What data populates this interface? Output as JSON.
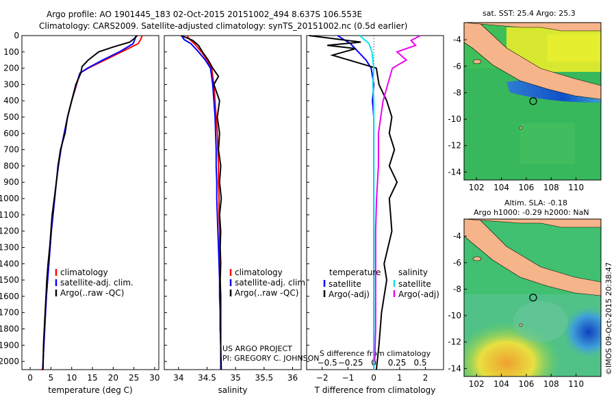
{
  "header": {
    "line1": "Argo profile: AO 1901445_183 02-Oct-2015 20151002_494 8.637S 106.553E",
    "line2": "Climatology: CARS2009. Satellite-adjusted climatology: synTS_20151002.nc (0.5d earlier)"
  },
  "colors": {
    "climatology": "#ff0000",
    "satellite": "#0000ff",
    "argo": "#000000",
    "satellite_s": "#00e5ee",
    "argo_s": "#ee00ee",
    "land": "#f6b48a"
  },
  "depth_axis": {
    "min": 0,
    "max": 2050,
    "ticks": [
      0,
      100,
      200,
      300,
      400,
      500,
      600,
      700,
      800,
      900,
      1000,
      1100,
      1200,
      1300,
      1400,
      1500,
      1600,
      1700,
      1800,
      1900,
      2000
    ],
    "tick_labels": [
      "0",
      "100",
      "200",
      "300",
      "400",
      "500",
      "600",
      "700",
      "800",
      "900",
      "1000",
      "1100",
      "1200",
      "1300",
      "1400",
      "1500",
      "1600",
      "1700",
      "1800",
      "1900",
      "2000"
    ]
  },
  "chart_data": [
    {
      "type": "line",
      "xlabel": "temperature (deg C)",
      "xlim": [
        -2,
        31
      ],
      "xticks": [
        0,
        5,
        10,
        15,
        20,
        25,
        30
      ],
      "xtick_labels": [
        "0",
        "5",
        "10",
        "15",
        "20",
        "25",
        "30"
      ],
      "legend": [
        "climatology",
        "satellite-adj. clim.",
        "Argo(..raw -QC)"
      ],
      "series": [
        {
          "name": "climatology",
          "color": "#ff0000",
          "x": [
            27.0,
            26.6,
            26.0,
            22.0,
            18.0,
            14.0,
            12.0,
            11.2,
            10.0,
            9.0,
            8.2,
            7.4,
            6.8,
            6.3,
            5.9,
            5.5,
            5.1,
            4.8,
            4.5,
            4.2,
            3.9,
            3.7,
            3.5,
            3.3,
            3.1,
            3.0,
            2.9,
            2.8,
            2.7,
            2.6
          ],
          "y": [
            0,
            25,
            50,
            100,
            150,
            200,
            230,
            300,
            400,
            500,
            600,
            700,
            800,
            900,
            1000,
            1100,
            1200,
            1300,
            1400,
            1500,
            1600,
            1700,
            1800,
            1900,
            2000,
            2050,
            2050,
            2050,
            2050,
            2050
          ]
        },
        {
          "name": "satellite-adj. clim.",
          "color": "#0000ff",
          "x": [
            25.5,
            25.2,
            24.8,
            21.5,
            17.5,
            13.8,
            12.0,
            11.1,
            10.0,
            9.0,
            8.2,
            7.4,
            6.8,
            6.3,
            5.9,
            5.5,
            5.1,
            4.8,
            4.5,
            4.2,
            3.9,
            3.7,
            3.5,
            3.3,
            3.1,
            3.0
          ],
          "y": [
            0,
            25,
            50,
            100,
            150,
            200,
            230,
            300,
            400,
            500,
            600,
            700,
            800,
            900,
            1000,
            1100,
            1200,
            1300,
            1400,
            1500,
            1600,
            1700,
            1800,
            1900,
            2000,
            2050
          ]
        },
        {
          "name": "Argo(..raw -QC)",
          "color": "#000000",
          "x": [
            25.8,
            25.0,
            24.0,
            20.0,
            16.5,
            14.0,
            12.5,
            12.2,
            11.0,
            10.0,
            9.0,
            8.4,
            7.3,
            6.7,
            6.3,
            5.8,
            5.3,
            5.0,
            4.7,
            4.3,
            4.0,
            3.8,
            3.6,
            3.4,
            3.2,
            3.1
          ],
          "y": [
            0,
            20,
            40,
            70,
            100,
            150,
            190,
            230,
            300,
            400,
            500,
            600,
            700,
            800,
            900,
            1000,
            1100,
            1200,
            1300,
            1400,
            1500,
            1600,
            1700,
            1800,
            1900,
            2050
          ]
        }
      ]
    },
    {
      "type": "line",
      "xlabel": "salinity",
      "xlim": [
        33.75,
        36.15
      ],
      "xticks": [
        34,
        34.5,
        35,
        35.5,
        36
      ],
      "xtick_labels": [
        "34",
        "34.5",
        "35",
        "35.5",
        "36"
      ],
      "legend": [
        "climatology",
        "satellite-adj. clim.",
        "Argo(..raw -QC)"
      ],
      "annotation": [
        "US ARGO PROJECT",
        "PI: GREGORY C. JOHNSON"
      ],
      "series": [
        {
          "name": "climatology",
          "color": "#ff0000",
          "x": [
            34.15,
            34.2,
            34.28,
            34.4,
            34.5,
            34.58,
            34.62,
            34.64,
            34.66,
            34.68,
            34.69,
            34.7,
            34.7,
            34.71,
            34.71,
            34.72,
            34.72,
            34.72,
            34.73,
            34.73,
            34.73,
            34.73,
            34.74,
            34.74,
            34.74
          ],
          "y": [
            0,
            25,
            50,
            100,
            150,
            200,
            300,
            400,
            500,
            600,
            700,
            800,
            900,
            1000,
            1100,
            1200,
            1300,
            1400,
            1500,
            1600,
            1700,
            1800,
            1900,
            2000,
            2050
          ]
        },
        {
          "name": "satellite-adj. clim.",
          "color": "#0000ff",
          "x": [
            34.05,
            34.1,
            34.22,
            34.35,
            34.47,
            34.56,
            34.6,
            34.62,
            34.64,
            34.65,
            34.66,
            34.66,
            34.67,
            34.67,
            34.68,
            34.69,
            34.7,
            34.71,
            34.72,
            34.72,
            34.73,
            34.73,
            34.74,
            34.74,
            34.74
          ],
          "y": [
            0,
            25,
            50,
            100,
            150,
            200,
            300,
            400,
            500,
            600,
            700,
            800,
            900,
            1000,
            1100,
            1200,
            1300,
            1400,
            1500,
            1600,
            1700,
            1800,
            1900,
            2000,
            2050
          ]
        },
        {
          "name": "Argo(..raw -QC)",
          "color": "#000000",
          "x": [
            34.05,
            34.25,
            34.35,
            34.42,
            34.52,
            34.6,
            34.7,
            34.62,
            34.72,
            34.68,
            34.72,
            34.7,
            34.74,
            34.72,
            34.75,
            34.72,
            34.74,
            34.73,
            34.74,
            34.73,
            34.74,
            34.74,
            34.74,
            34.74,
            34.75
          ],
          "y": [
            0,
            30,
            60,
            100,
            150,
            200,
            250,
            300,
            400,
            500,
            600,
            700,
            800,
            900,
            1000,
            1100,
            1200,
            1300,
            1400,
            1500,
            1600,
            1700,
            1800,
            1900,
            2050
          ]
        }
      ]
    },
    {
      "type": "line",
      "xlabel": "T difference from climatology",
      "xlabel_top": "S difference from climatology",
      "xlim": [
        -2.6,
        2.7
      ],
      "xticks": [
        -2,
        -1,
        0,
        1,
        2
      ],
      "xtick_labels": [
        "−2",
        "−1",
        "0",
        "1",
        "2"
      ],
      "xticks_s": [
        -0.5,
        -0.25,
        0,
        0.25,
        0.5
      ],
      "xtick_labels_s": [
        "−0.5",
        "−0.25",
        "0",
        "0.25",
        "0.5"
      ],
      "legend_t_title": "temperature",
      "legend_s_title": "salinity",
      "legend": [
        "satellite",
        "Argo(-adj)",
        "satellite",
        "Argo(-adj)"
      ],
      "series": [
        {
          "name": "satellite",
          "quantity": "T",
          "color": "#0000ff",
          "x": [
            -1.4,
            -1.2,
            -0.9,
            -0.6,
            -0.3,
            -0.1,
            0,
            -0.05,
            0,
            0,
            0,
            0,
            0,
            0,
            0,
            0,
            0,
            0,
            0,
            0,
            0
          ],
          "y": [
            0,
            20,
            50,
            100,
            150,
            200,
            300,
            400,
            500,
            600,
            700,
            800,
            900,
            1000,
            1100,
            1200,
            1300,
            1400,
            1500,
            1700,
            2050
          ]
        },
        {
          "name": "Argo(-adj)",
          "quantity": "T",
          "color": "#000000",
          "x": [
            -2.5,
            -1.5,
            -0.5,
            -1.8,
            -0.7,
            -1.6,
            0.1,
            0.2,
            0.5,
            0.7,
            0.6,
            0.8,
            0.6,
            0.9,
            0.6,
            0.7,
            0.4,
            0.5,
            0.3,
            0.2,
            0.1
          ],
          "y": [
            0,
            20,
            40,
            60,
            80,
            120,
            200,
            300,
            400,
            500,
            600,
            700,
            800,
            900,
            1000,
            1200,
            1400,
            1500,
            1700,
            1900,
            2050
          ]
        },
        {
          "name": "satellite",
          "quantity": "S",
          "color": "#00e5ee",
          "x": [
            -0.15,
            -0.1,
            -0.05,
            -0.02,
            -0.01,
            0,
            -0.01,
            0,
            0,
            0,
            0,
            0,
            0,
            0,
            0
          ],
          "y": [
            0,
            25,
            50,
            100,
            150,
            200,
            300,
            400,
            600,
            800,
            1000,
            1200,
            1500,
            1800,
            2050
          ]
        },
        {
          "name": "Argo(-adj)",
          "quantity": "S",
          "color": "#ee00ee",
          "x": [
            0.5,
            0.4,
            0.45,
            0.25,
            0.35,
            0.2,
            0.15,
            0.1,
            0.05,
            0.05,
            0.03,
            0.02,
            0.02,
            0.02,
            0.01
          ],
          "y": [
            0,
            30,
            60,
            100,
            150,
            200,
            300,
            400,
            600,
            800,
            1000,
            1200,
            1500,
            1800,
            2000
          ]
        }
      ]
    },
    {
      "type": "heatmap",
      "title": "sat. SST: 25.4  Argo: 25.3",
      "xlim": [
        101,
        112
      ],
      "ylim": [
        -14.6,
        -2.7
      ],
      "xticks": [
        102,
        104,
        106,
        108,
        110
      ],
      "xtick_labels": [
        "102",
        "104",
        "106",
        "108",
        "110"
      ],
      "yticks": [
        -4,
        -6,
        -8,
        -10,
        -12,
        -14
      ],
      "ytick_labels": [
        "-4",
        "-6",
        "-8",
        "-10",
        "-12",
        "-14"
      ],
      "marker": {
        "lon": 106.553,
        "lat": -8.637
      }
    },
    {
      "type": "heatmap",
      "title": "Altim. SLA: -0.18",
      "subtitle": "Argo h1000: -0.29 h2000: NaN",
      "xlim": [
        101,
        112
      ],
      "ylim": [
        -14.6,
        -2.7
      ],
      "xticks": [
        102,
        104,
        106,
        108,
        110
      ],
      "xtick_labels": [
        "102",
        "104",
        "106",
        "108",
        "110"
      ],
      "yticks": [
        -4,
        -6,
        -8,
        -10,
        -12,
        -14
      ],
      "ytick_labels": [
        "-4",
        "-6",
        "-8",
        "-10",
        "-12",
        "-14"
      ],
      "marker": {
        "lon": 106.553,
        "lat": -8.637
      }
    }
  ],
  "credit": "©IMOS 09-Oct-2015 20:38:47"
}
